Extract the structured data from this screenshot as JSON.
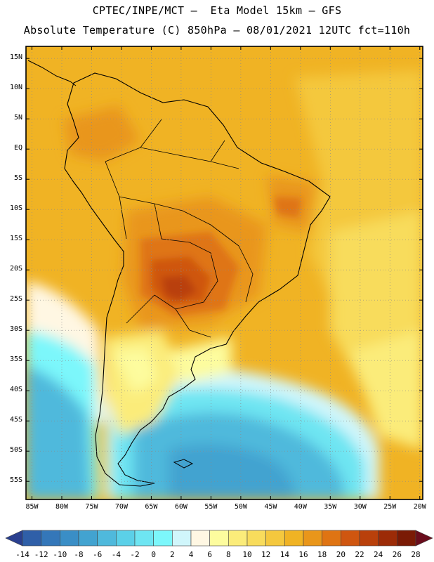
{
  "header": {
    "title_line1": "CPTEC/INPE/MCT –  Eta Model 15km – GFS",
    "title_line2": "Absolute Temperature (C) 850hPa – 08/01/2021 12UTC fct=110h"
  },
  "map": {
    "lon_range": [
      -86,
      -19.5
    ],
    "lat_range": [
      -58,
      17
    ],
    "lat_labels": [
      "15N",
      "10N",
      "5N",
      "EQ",
      "5S",
      "10S",
      "15S",
      "20S",
      "25S",
      "30S",
      "35S",
      "40S",
      "45S",
      "50S",
      "55S"
    ],
    "lat_values": [
      15,
      10,
      5,
      0,
      -5,
      -10,
      -15,
      -20,
      -25,
      -30,
      -35,
      -40,
      -45,
      -50,
      -55
    ],
    "lon_labels": [
      "85W",
      "80W",
      "75W",
      "70W",
      "65W",
      "60W",
      "55W",
      "50W",
      "45W",
      "40W",
      "35W",
      "30W",
      "25W",
      "20W"
    ],
    "lon_values": [
      -85,
      -80,
      -75,
      -70,
      -65,
      -60,
      -55,
      -50,
      -45,
      -40,
      -35,
      -30,
      -25,
      -20
    ]
  },
  "colorbar": {
    "colors": [
      "#2a3f8f",
      "#2f5fa8",
      "#3477b9",
      "#3a8ec6",
      "#42a3d0",
      "#4fb9dc",
      "#5bd0e8",
      "#6ee5f2",
      "#7cf7fb",
      "#d0f6fb",
      "#fff7e3",
      "#fdfc9e",
      "#fbec7a",
      "#f8dc5c",
      "#f4c83e",
      "#f0b324",
      "#e9961a",
      "#df7413",
      "#cf5610",
      "#b9400b",
      "#9c2b07",
      "#7a1a05",
      "#6a0d1c"
    ],
    "labels": [
      "-14",
      "-12",
      "-10",
      "-8",
      "-6",
      "-4",
      "-2",
      "0",
      "2",
      "4",
      "6",
      "8",
      "10",
      "12",
      "14",
      "16",
      "18",
      "20",
      "22",
      "24",
      "26",
      "28"
    ]
  }
}
